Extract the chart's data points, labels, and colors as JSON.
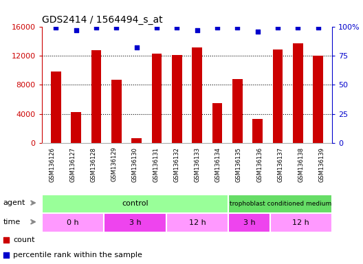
{
  "title": "GDS2414 / 1564494_s_at",
  "samples": [
    "GSM136126",
    "GSM136127",
    "GSM136128",
    "GSM136129",
    "GSM136130",
    "GSM136131",
    "GSM136132",
    "GSM136133",
    "GSM136134",
    "GSM136135",
    "GSM136136",
    "GSM136137",
    "GSM136138",
    "GSM136139"
  ],
  "counts": [
    9800,
    4200,
    12800,
    8700,
    600,
    12300,
    12100,
    13100,
    5500,
    8800,
    3300,
    12900,
    13700,
    12000
  ],
  "percentile": [
    99,
    97,
    99,
    99,
    82,
    99,
    99,
    97,
    99,
    99,
    96,
    99,
    99,
    99
  ],
  "bar_color": "#cc0000",
  "dot_color": "#0000cc",
  "ylim_left": [
    0,
    16000
  ],
  "ylim_right": [
    0,
    100
  ],
  "yticks_left": [
    0,
    4000,
    8000,
    12000,
    16000
  ],
  "yticks_right": [
    0,
    25,
    50,
    75,
    100
  ],
  "ytick_labels_right": [
    "0",
    "25",
    "50",
    "75",
    "100%"
  ],
  "background_color": "#ffffff",
  "tick_label_color_left": "#cc0000",
  "tick_label_color_right": "#0000cc",
  "bar_width": 0.5,
  "agent_row_color_control": "#99ff99",
  "agent_row_color_troph": "#66dd66",
  "time_colors": [
    "#ff99ff",
    "#ee44ee",
    "#ff99ff",
    "#ee44ee",
    "#ff99ff"
  ],
  "time_labels": [
    "0 h",
    "3 h",
    "12 h",
    "3 h",
    "12 h"
  ],
  "time_ranges": [
    [
      0,
      3
    ],
    [
      3,
      6
    ],
    [
      6,
      9
    ],
    [
      9,
      11
    ],
    [
      11,
      14
    ]
  ],
  "xtick_bg_color": "#d8d8d8",
  "border_color": "#aaaaaa"
}
